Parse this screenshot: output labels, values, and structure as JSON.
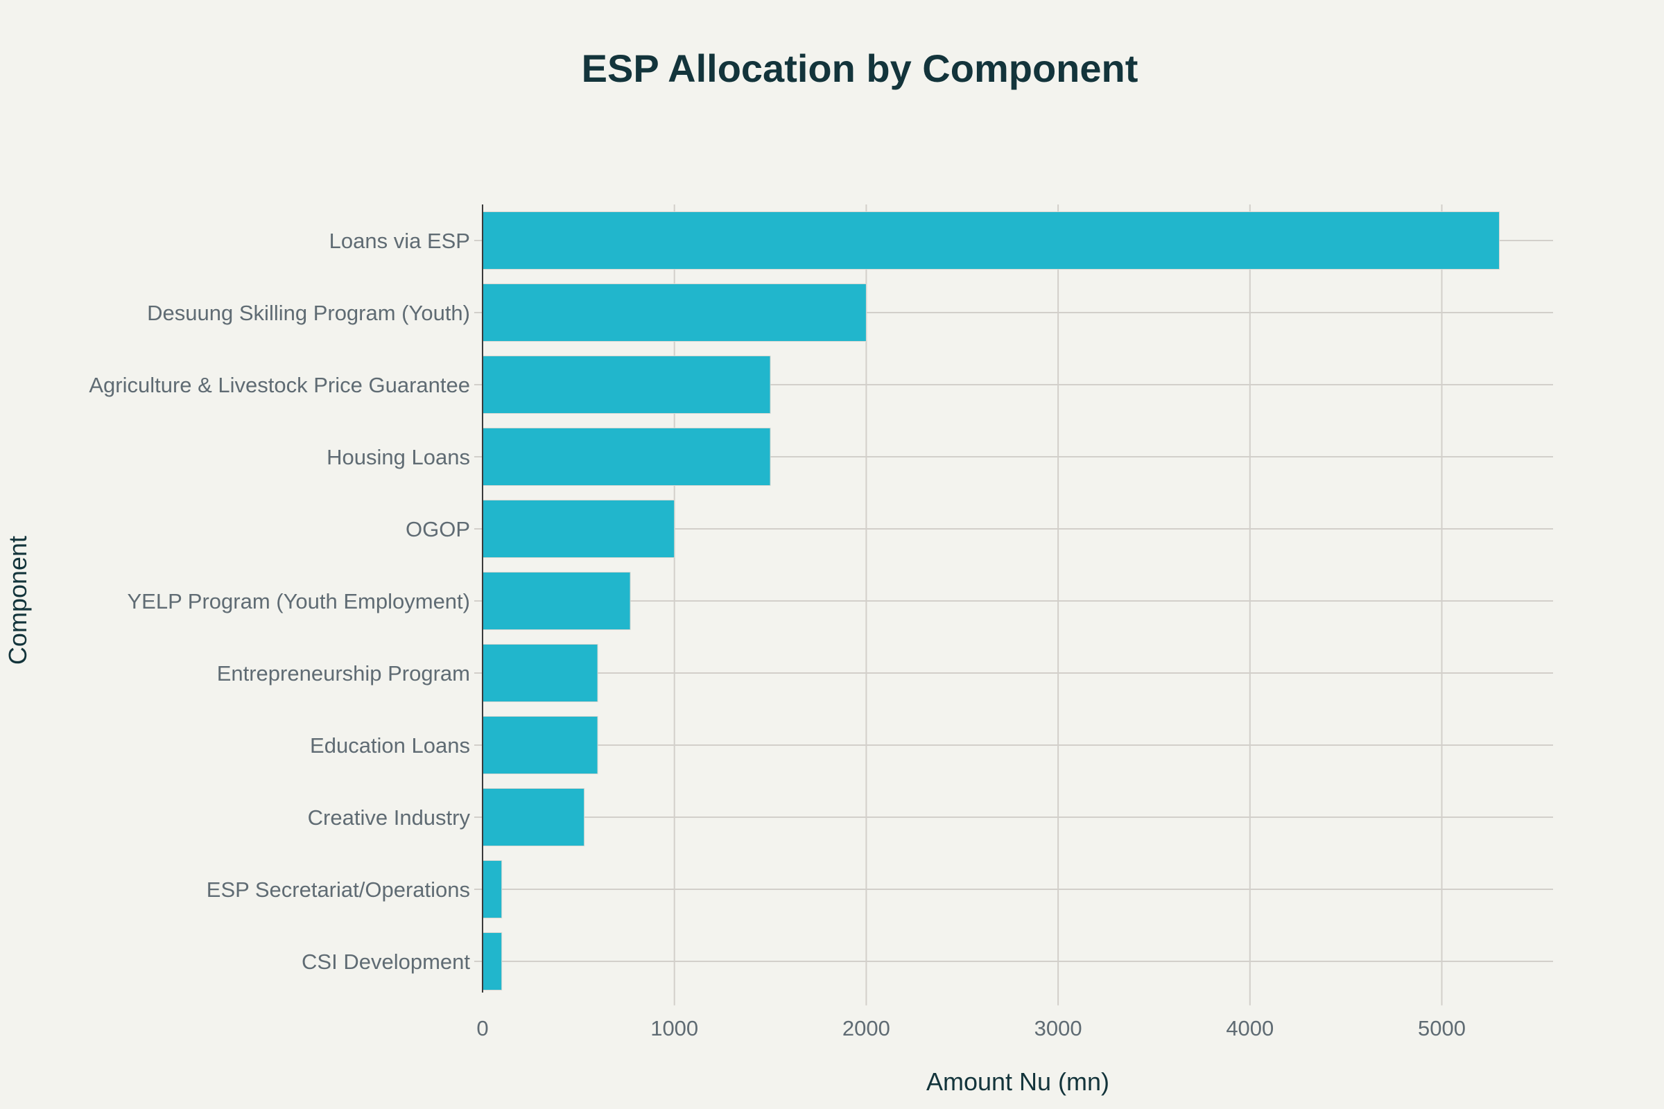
{
  "chart_data": {
    "type": "bar",
    "orientation": "horizontal",
    "title": "ESP Allocation by Component",
    "xlabel": "Amount Nu (mn)",
    "ylabel": "Component",
    "categories": [
      "Loans via ESP",
      "Desuung Skilling Program (Youth)",
      "Agriculture & Livestock Price Guarantee",
      "Housing Loans",
      "OGOP",
      "YELP Program (Youth Employment)",
      "Entrepreneurship Program",
      "Education Loans",
      "Creative Industry",
      "ESP Secretariat/Operations",
      "CSI Development"
    ],
    "values": [
      5300,
      2000,
      1500,
      1500,
      1000,
      770,
      600,
      600,
      530,
      100,
      100
    ],
    "xlim": [
      0,
      5580
    ],
    "xticks": [
      "0",
      "1000",
      "2000",
      "3000",
      "4000",
      "5000"
    ],
    "grid": true,
    "legend": "none",
    "bar_color": "#21b6cc",
    "background": "#f3f3ee"
  }
}
